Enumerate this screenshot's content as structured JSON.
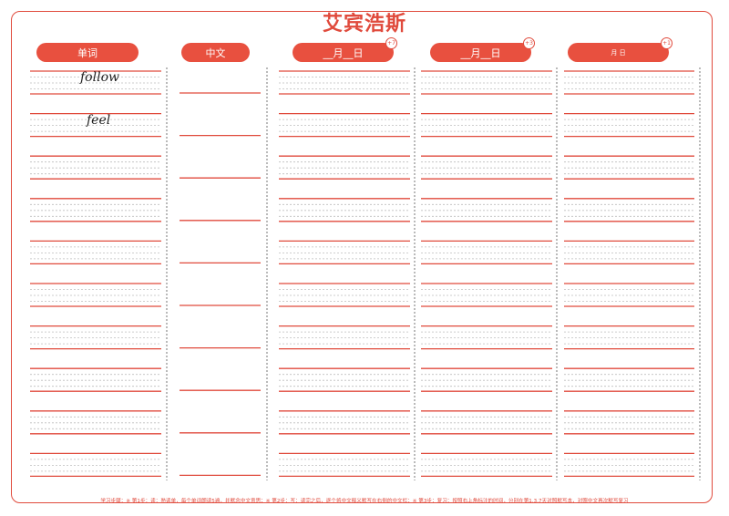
{
  "title": "艾宾浩斯",
  "columns": [
    {
      "label": "单词"
    },
    {
      "label": "中文"
    },
    {
      "label": "__月__日",
      "badge": "+7"
    },
    {
      "label": "__月__日",
      "badge": "+3"
    },
    {
      "label": "月    日",
      "badge": "+1"
    }
  ],
  "words": [
    "follow",
    "feel"
  ],
  "row_count": 10,
  "footer": "学习步骤：※ 第1步：读：熟读单，每个单词朗读5遍，并默念中文意思；※ 第2步：写：读完之后，逐个将中文释义默写在右侧的中文栏；※ 第3步：复习：按照右上角标注的时间，分别在第1,3,7天对照默写本，对照中文再次默写复习",
  "colors": {
    "accent": "#e04a3c",
    "pill": "#e8503f",
    "guide": "#bdbdbd",
    "divider": "#555555"
  }
}
